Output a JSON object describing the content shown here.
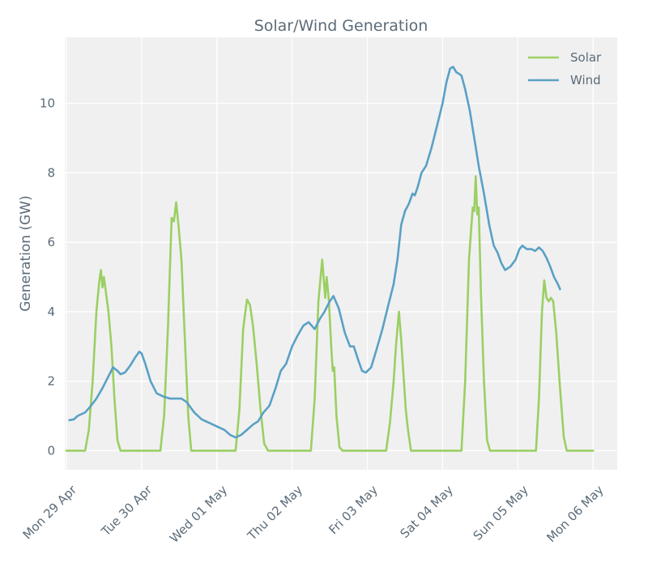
{
  "chart_data": {
    "type": "line",
    "title": "Solar/Wind Generation",
    "xlabel": "",
    "ylabel": "Generation (GW)",
    "ylim": [
      -0.55,
      11.9
    ],
    "yticks": [
      0,
      2,
      4,
      6,
      8,
      10
    ],
    "xlim": [
      -0.02,
      7.32
    ],
    "xticks": [
      0,
      1,
      2,
      3,
      4,
      5,
      6,
      7
    ],
    "xtick_labels": [
      "Mon 29 Apr",
      "Tue 30 Apr",
      "Wed 01 May",
      "Thu 02 May",
      "Fri 03 May",
      "Sat 04 May",
      "Sun 05 May",
      "Mon 06 May"
    ],
    "x_units": "days since Mon 29 Apr 00:00",
    "grid": true,
    "legend_position": "top-right",
    "colors": {
      "solar": "#9bcf63",
      "wind": "#5aa0c5",
      "background": "#f0f0f0",
      "grid": "#ffffff"
    },
    "series": [
      {
        "name": "Solar",
        "color": "#9bcf63",
        "points": [
          [
            0.0,
            0
          ],
          [
            0.25,
            0
          ],
          [
            0.3,
            0.6
          ],
          [
            0.35,
            2.0
          ],
          [
            0.4,
            4.0
          ],
          [
            0.44,
            4.9
          ],
          [
            0.46,
            5.2
          ],
          [
            0.48,
            4.7
          ],
          [
            0.5,
            5.0
          ],
          [
            0.53,
            4.5
          ],
          [
            0.56,
            4.0
          ],
          [
            0.6,
            3.0
          ],
          [
            0.64,
            1.5
          ],
          [
            0.68,
            0.3
          ],
          [
            0.72,
            0
          ],
          [
            1.25,
            0
          ],
          [
            1.3,
            1.0
          ],
          [
            1.35,
            3.5
          ],
          [
            1.4,
            6.7
          ],
          [
            1.43,
            6.6
          ],
          [
            1.46,
            7.15
          ],
          [
            1.49,
            6.5
          ],
          [
            1.53,
            5.5
          ],
          [
            1.57,
            3.5
          ],
          [
            1.62,
            1.0
          ],
          [
            1.66,
            0
          ],
          [
            2.25,
            0
          ],
          [
            2.3,
            1.2
          ],
          [
            2.35,
            3.5
          ],
          [
            2.4,
            4.35
          ],
          [
            2.44,
            4.2
          ],
          [
            2.48,
            3.6
          ],
          [
            2.53,
            2.5
          ],
          [
            2.58,
            1.2
          ],
          [
            2.63,
            0.2
          ],
          [
            2.68,
            0
          ],
          [
            3.25,
            0
          ],
          [
            3.3,
            1.5
          ],
          [
            3.35,
            4.3
          ],
          [
            3.4,
            5.5
          ],
          [
            3.44,
            4.4
          ],
          [
            3.46,
            5.0
          ],
          [
            3.49,
            4.3
          ],
          [
            3.52,
            3.0
          ],
          [
            3.54,
            2.3
          ],
          [
            3.56,
            2.4
          ],
          [
            3.59,
            1.0
          ],
          [
            3.63,
            0.1
          ],
          [
            3.67,
            0
          ],
          [
            4.25,
            0
          ],
          [
            4.3,
            0.8
          ],
          [
            4.35,
            2.0
          ],
          [
            4.38,
            3.0
          ],
          [
            4.42,
            4.0
          ],
          [
            4.45,
            3.2
          ],
          [
            4.48,
            2.2
          ],
          [
            4.51,
            1.2
          ],
          [
            4.54,
            0.6
          ],
          [
            4.58,
            0
          ],
          [
            5.25,
            0
          ],
          [
            5.3,
            2.0
          ],
          [
            5.35,
            5.5
          ],
          [
            5.4,
            7.0
          ],
          [
            5.42,
            6.9
          ],
          [
            5.44,
            7.9
          ],
          [
            5.46,
            6.8
          ],
          [
            5.48,
            7.0
          ],
          [
            5.51,
            4.5
          ],
          [
            5.55,
            2.0
          ],
          [
            5.59,
            0.3
          ],
          [
            5.63,
            0
          ],
          [
            6.24,
            0
          ],
          [
            6.28,
            1.5
          ],
          [
            6.32,
            4.0
          ],
          [
            6.35,
            4.9
          ],
          [
            6.38,
            4.4
          ],
          [
            6.41,
            4.3
          ],
          [
            6.44,
            4.4
          ],
          [
            6.47,
            4.3
          ],
          [
            6.51,
            3.4
          ],
          [
            6.56,
            1.8
          ],
          [
            6.61,
            0.4
          ],
          [
            6.65,
            0
          ],
          [
            7.0,
            0
          ]
        ]
      },
      {
        "name": "Wind",
        "color": "#5aa0c5",
        "points": [
          [
            0.04,
            0.88
          ],
          [
            0.1,
            0.9
          ],
          [
            0.15,
            1.0
          ],
          [
            0.25,
            1.1
          ],
          [
            0.33,
            1.3
          ],
          [
            0.4,
            1.5
          ],
          [
            0.48,
            1.8
          ],
          [
            0.55,
            2.1
          ],
          [
            0.62,
            2.4
          ],
          [
            0.68,
            2.3
          ],
          [
            0.72,
            2.2
          ],
          [
            0.78,
            2.25
          ],
          [
            0.85,
            2.45
          ],
          [
            0.92,
            2.7
          ],
          [
            0.97,
            2.85
          ],
          [
            1.0,
            2.8
          ],
          [
            1.05,
            2.5
          ],
          [
            1.12,
            2.0
          ],
          [
            1.2,
            1.65
          ],
          [
            1.3,
            1.55
          ],
          [
            1.38,
            1.5
          ],
          [
            1.46,
            1.5
          ],
          [
            1.53,
            1.5
          ],
          [
            1.6,
            1.4
          ],
          [
            1.7,
            1.1
          ],
          [
            1.8,
            0.9
          ],
          [
            1.9,
            0.8
          ],
          [
            2.0,
            0.7
          ],
          [
            2.1,
            0.6
          ],
          [
            2.18,
            0.45
          ],
          [
            2.25,
            0.38
          ],
          [
            2.32,
            0.45
          ],
          [
            2.4,
            0.6
          ],
          [
            2.48,
            0.75
          ],
          [
            2.55,
            0.85
          ],
          [
            2.62,
            1.1
          ],
          [
            2.7,
            1.3
          ],
          [
            2.78,
            1.8
          ],
          [
            2.85,
            2.3
          ],
          [
            2.92,
            2.5
          ],
          [
            3.0,
            3.0
          ],
          [
            3.07,
            3.3
          ],
          [
            3.15,
            3.6
          ],
          [
            3.22,
            3.7
          ],
          [
            3.3,
            3.5
          ],
          [
            3.37,
            3.8
          ],
          [
            3.43,
            4.0
          ],
          [
            3.5,
            4.3
          ],
          [
            3.55,
            4.45
          ],
          [
            3.62,
            4.1
          ],
          [
            3.7,
            3.4
          ],
          [
            3.77,
            3.0
          ],
          [
            3.82,
            3.0
          ],
          [
            3.88,
            2.6
          ],
          [
            3.93,
            2.3
          ],
          [
            3.98,
            2.25
          ],
          [
            4.05,
            2.4
          ],
          [
            4.12,
            2.9
          ],
          [
            4.2,
            3.5
          ],
          [
            4.28,
            4.2
          ],
          [
            4.35,
            4.8
          ],
          [
            4.4,
            5.5
          ],
          [
            4.45,
            6.5
          ],
          [
            4.5,
            6.9
          ],
          [
            4.55,
            7.1
          ],
          [
            4.6,
            7.4
          ],
          [
            4.63,
            7.35
          ],
          [
            4.67,
            7.6
          ],
          [
            4.72,
            8.0
          ],
          [
            4.78,
            8.2
          ],
          [
            4.85,
            8.7
          ],
          [
            4.92,
            9.3
          ],
          [
            5.0,
            10.0
          ],
          [
            5.05,
            10.6
          ],
          [
            5.1,
            11.0
          ],
          [
            5.14,
            11.05
          ],
          [
            5.18,
            10.9
          ],
          [
            5.25,
            10.8
          ],
          [
            5.3,
            10.4
          ],
          [
            5.36,
            9.8
          ],
          [
            5.42,
            9.0
          ],
          [
            5.48,
            8.2
          ],
          [
            5.55,
            7.4
          ],
          [
            5.62,
            6.5
          ],
          [
            5.68,
            5.9
          ],
          [
            5.73,
            5.7
          ],
          [
            5.78,
            5.4
          ],
          [
            5.83,
            5.2
          ],
          [
            5.9,
            5.3
          ],
          [
            5.97,
            5.5
          ],
          [
            6.02,
            5.8
          ],
          [
            6.06,
            5.9
          ],
          [
            6.12,
            5.8
          ],
          [
            6.18,
            5.8
          ],
          [
            6.23,
            5.75
          ],
          [
            6.28,
            5.85
          ],
          [
            6.33,
            5.75
          ],
          [
            6.38,
            5.55
          ],
          [
            6.43,
            5.3
          ],
          [
            6.48,
            5.0
          ],
          [
            6.53,
            4.8
          ],
          [
            6.56,
            4.65
          ]
        ]
      }
    ]
  }
}
